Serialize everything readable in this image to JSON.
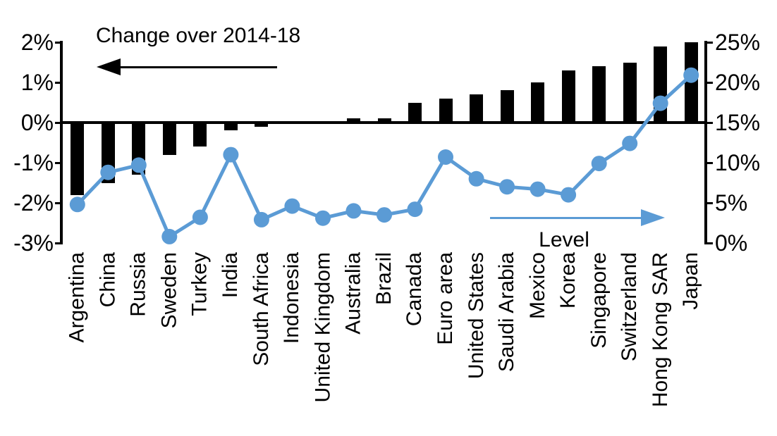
{
  "chart_data": {
    "type": "bar+line",
    "categories": [
      "Argentina",
      "China",
      "Russia",
      "Sweden",
      "Turkey",
      "India",
      "South Africa",
      "Indonesia",
      "United Kingdom",
      "Australia",
      "Brazil",
      "Canada",
      "Euro area",
      "United States",
      "Saudi Arabia",
      "Mexico",
      "Korea",
      "Singapore",
      "Switzerland",
      "Hong Kong SAR",
      "Japan"
    ],
    "series": [
      {
        "name": "Change over 2014-18",
        "type": "bar",
        "axis": "left",
        "color": "#000000",
        "values": [
          -1.8,
          -1.5,
          -1.3,
          -0.8,
          -0.6,
          -0.2,
          -0.1,
          0.0,
          0.0,
          0.1,
          0.1,
          0.5,
          0.6,
          0.7,
          0.8,
          1.0,
          1.3,
          1.4,
          1.5,
          1.9,
          2.0
        ]
      },
      {
        "name": "Level",
        "type": "line",
        "axis": "right",
        "color": "#5B9BD5",
        "values": [
          4.8,
          8.8,
          9.7,
          0.8,
          3.2,
          11.0,
          2.9,
          4.6,
          3.1,
          4.0,
          3.5,
          4.2,
          10.7,
          8.0,
          7.0,
          6.7,
          6.0,
          9.9,
          12.4,
          17.4,
          20.9
        ]
      }
    ],
    "left_axis": {
      "ticks": [
        "2%",
        "1%",
        "0%",
        "-1%",
        "-2%",
        "-3%"
      ],
      "max": 2,
      "min": -3
    },
    "right_axis": {
      "ticks": [
        "25%",
        "20%",
        "15%",
        "10%",
        "5%",
        "0%"
      ],
      "max": 25,
      "min": 0
    },
    "annotations": {
      "bar_label": "Change over 2014-18",
      "line_label": "Level"
    },
    "colors": {
      "bar": "#000000",
      "line": "#5B9BD5",
      "axis": "#000000"
    },
    "legend_position": "annotations-inside-plot",
    "grid": false
  }
}
